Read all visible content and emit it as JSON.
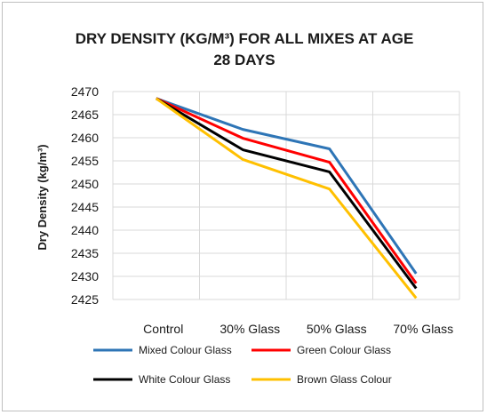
{
  "chart_data": {
    "type": "line",
    "title_lines": [
      "DRY DENSITY (KG/M³) FOR ALL MIXES AT AGE",
      "28 DAYS"
    ],
    "ylabel": "Dry Density (kg/m³)",
    "xlabel": "",
    "categories": [
      "Control",
      "30% Glass",
      "50% Glass",
      "70% Glass"
    ],
    "ylim": [
      2425,
      2470
    ],
    "yticks": [
      2425,
      2430,
      2435,
      2440,
      2445,
      2450,
      2455,
      2460,
      2465,
      2470
    ],
    "grid": true,
    "legend_position": "bottom",
    "series": [
      {
        "name": "Mixed Colour Glass",
        "color": "#2e75b6",
        "values": [
          2468.5,
          2461.8,
          2457.6,
          2430.6
        ]
      },
      {
        "name": "Green Colour Glass",
        "color": "#ff0000",
        "values": [
          2468.5,
          2459.9,
          2454.7,
          2428.5
        ]
      },
      {
        "name": "White Colour Glass",
        "color": "#000000",
        "values": [
          2468.5,
          2457.4,
          2452.6,
          2427.4
        ]
      },
      {
        "name": "Brown Glass Colour",
        "color": "#ffc000",
        "values": [
          2468.5,
          2455.3,
          2448.9,
          2425.3
        ]
      }
    ]
  }
}
